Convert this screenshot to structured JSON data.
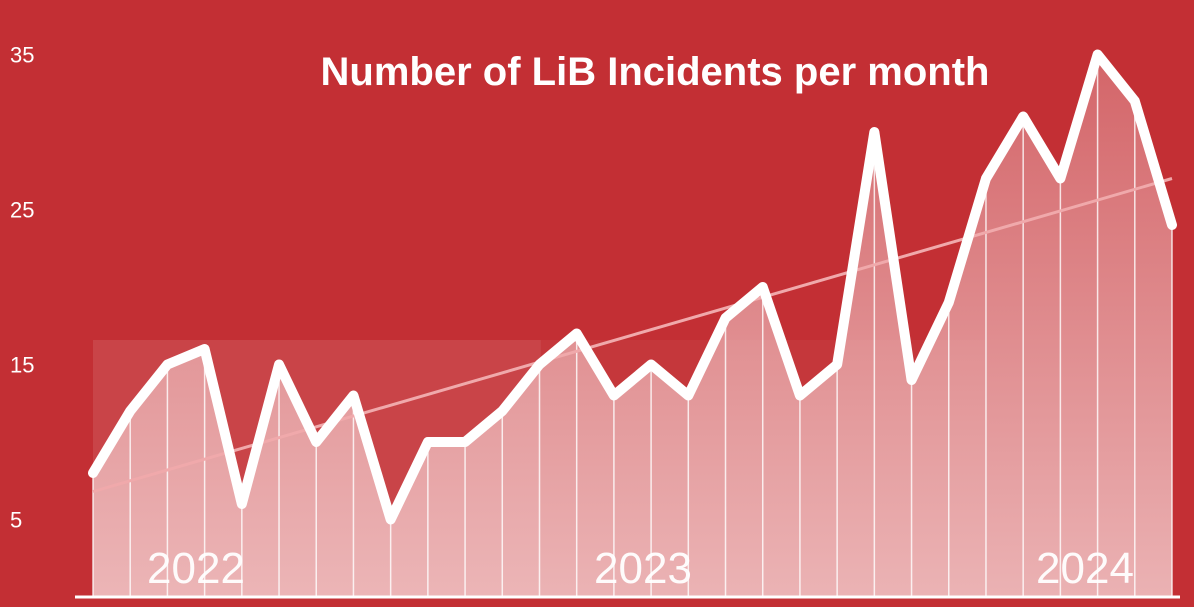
{
  "colors": {
    "background": "#c32f34",
    "line": "#ffffff",
    "trend": "#f0a9ab",
    "fill": "#f2c9ca",
    "year_band": "#ffffff"
  },
  "chart_data": {
    "type": "area",
    "title": "Number of LiB Incidents per month",
    "xlabel": "",
    "ylabel": "",
    "ylim": [
      0,
      36
    ],
    "yticks": [
      5,
      15,
      25,
      35
    ],
    "year_labels": [
      "2022",
      "2023",
      "2024"
    ],
    "year_groups": [
      [
        0,
        11
      ],
      [
        12,
        23
      ],
      [
        24,
        29
      ]
    ],
    "grid": false,
    "legend": "none",
    "values": [
      8,
      12,
      15,
      16,
      6,
      15,
      10,
      13,
      5,
      10,
      10,
      12,
      15,
      17,
      13,
      15,
      13,
      18,
      20,
      13,
      15,
      30,
      14,
      19,
      27,
      31,
      27,
      35,
      32,
      24
    ],
    "trend": {
      "start": 6.8,
      "end": 27
    }
  }
}
